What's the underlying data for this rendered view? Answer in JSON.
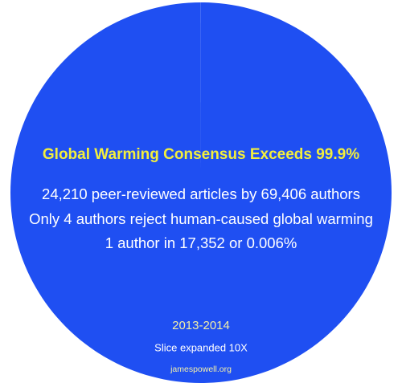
{
  "chart_data": {
    "type": "pie",
    "title": "Global Warming Consensus Exceeds 99.9%",
    "annotations": [
      "24,210 peer-reviewed articles by 69,406 authors",
      "Only 4 authors reject human-caused global warming",
      "1 author in 17,352 or 0.006%",
      "2013-2014",
      "Slice expanded 10X",
      "jamespowell.org"
    ],
    "categories": [
      null,
      null
    ],
    "values": [
      69402,
      4
    ],
    "colors": [
      "#1f4ff2",
      "#ffffff"
    ]
  }
}
